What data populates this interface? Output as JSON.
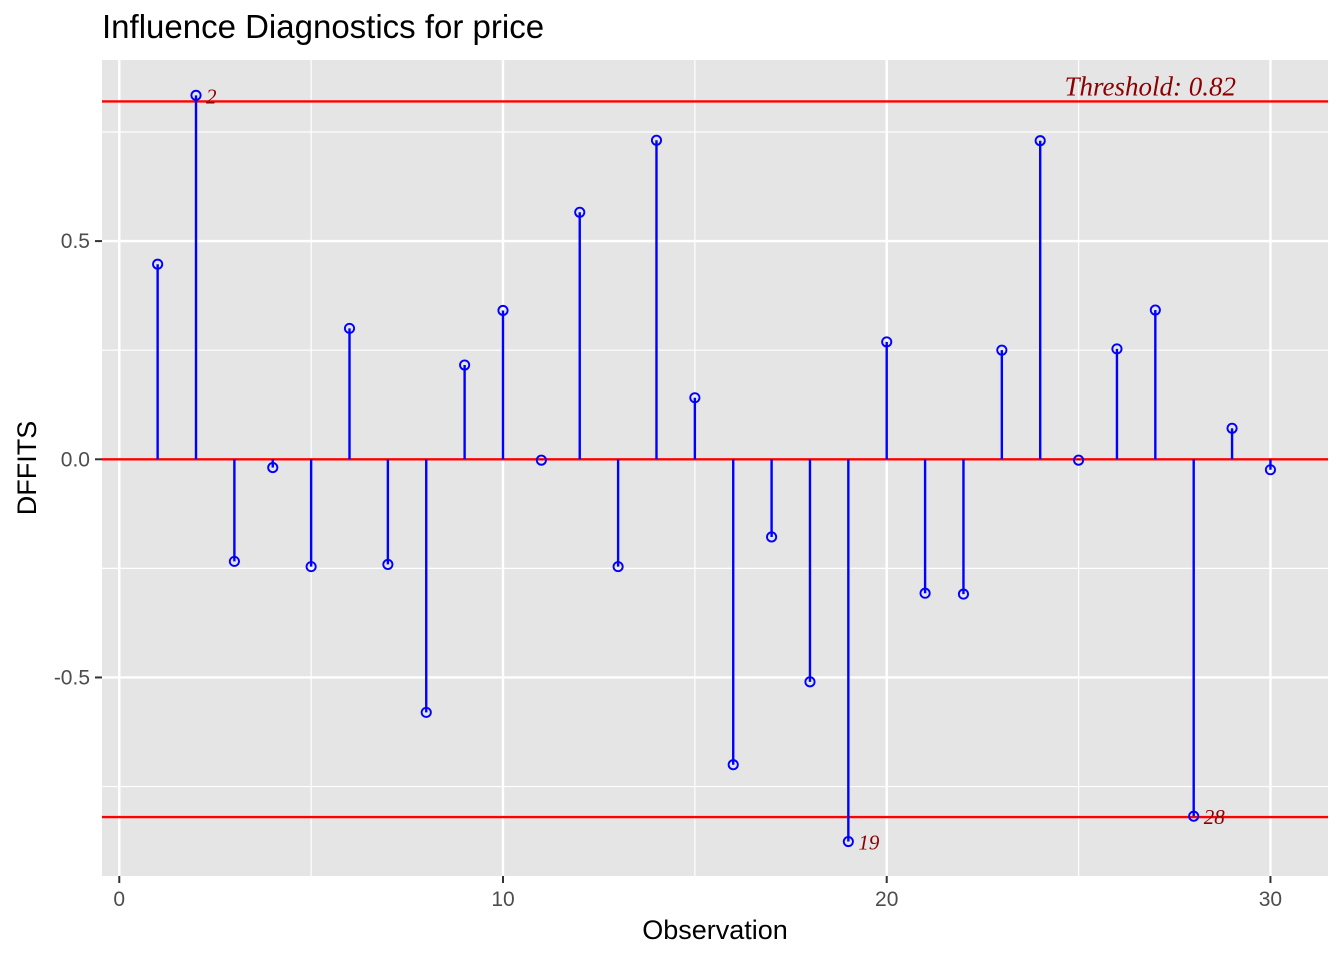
{
  "chart_data": {
    "type": "stem",
    "title": "Influence Diagnostics for price",
    "xlabel": "Observation",
    "ylabel": "DFFITS",
    "xlim": [
      -0.45,
      31.5
    ],
    "ylim": [
      -0.955,
      0.915
    ],
    "x_ticks": [
      0,
      10,
      20,
      30
    ],
    "x_tick_labels": [
      "0",
      "10",
      "20",
      "30"
    ],
    "y_ticks": [
      -0.5,
      0.0,
      0.5
    ],
    "y_tick_labels": [
      "-0.5",
      "0.0",
      "0.5"
    ],
    "grid": true,
    "threshold": 0.82,
    "threshold_label": "Threshold: 0.82",
    "x": [
      1,
      2,
      3,
      4,
      5,
      6,
      7,
      8,
      9,
      10,
      11,
      12,
      13,
      14,
      15,
      16,
      17,
      18,
      19,
      20,
      21,
      22,
      23,
      24,
      25,
      26,
      27,
      28,
      29,
      30
    ],
    "values": [
      0.447,
      0.834,
      -0.234,
      -0.019,
      -0.246,
      0.3,
      -0.241,
      -0.58,
      0.216,
      0.341,
      -0.002,
      0.566,
      -0.246,
      0.731,
      0.141,
      -0.7,
      -0.178,
      -0.51,
      -0.876,
      0.269,
      -0.307,
      -0.309,
      0.25,
      0.73,
      -0.002,
      0.253,
      0.342,
      -0.818,
      0.071,
      -0.024
    ],
    "labeled_points": [
      {
        "x": 2,
        "label": "2"
      },
      {
        "x": 19,
        "label": "19"
      },
      {
        "x": 28,
        "label": "28"
      }
    ],
    "colors": {
      "stem": "#0000ff",
      "reference_line": "#ff0000",
      "label": "#8b0000",
      "panel": "#e5e5e5",
      "grid": "#ffffff"
    }
  }
}
